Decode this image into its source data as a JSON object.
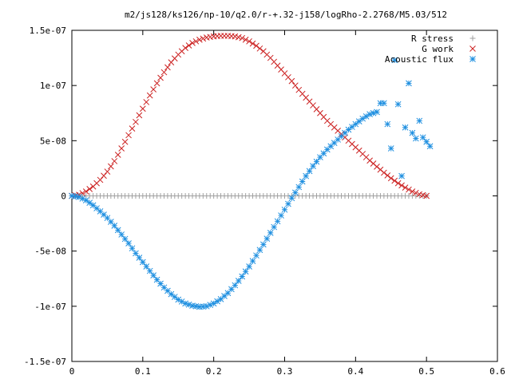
{
  "chart_data": {
    "type": "scatter",
    "title": "m2/js128/ks126/np-10/q2.0/r-+.32-j158/logRho-2.2768/M5.03/512",
    "xlabel": "",
    "ylabel": "",
    "xlim": [
      0,
      0.6
    ],
    "ylim": [
      -1.5e-07,
      1.5e-07
    ],
    "x_ticks": [
      0,
      0.1,
      0.2,
      0.3,
      0.4,
      0.5,
      0.6
    ],
    "x_tick_labels": [
      "0",
      "0.1",
      "0.2",
      "0.3",
      "0.4",
      "0.5",
      "0.6"
    ],
    "y_ticks": [
      -1.5e-07,
      -1e-07,
      -5e-08,
      0,
      5e-08,
      1e-07,
      1.5e-07
    ],
    "y_tick_labels": [
      "-1.5e-07",
      "-1e-07",
      "-5e-08",
      "0",
      "5e-08",
      "1e-07",
      "1.5e-07"
    ],
    "grid": false,
    "legend_position": "top-right",
    "series": [
      {
        "name": "R stress",
        "marker": "plus",
        "color": "#a0a0a0",
        "x": [
          0,
          0.01,
          0.02,
          0.03,
          0.04,
          0.05,
          0.06,
          0.07,
          0.08,
          0.09,
          0.1,
          0.11,
          0.12,
          0.13,
          0.14,
          0.15,
          0.16,
          0.17,
          0.18,
          0.19,
          0.2,
          0.21,
          0.22,
          0.23,
          0.24,
          0.25,
          0.26,
          0.27,
          0.28,
          0.29,
          0.3,
          0.31,
          0.32,
          0.33,
          0.34,
          0.35,
          0.36,
          0.37,
          0.38,
          0.39,
          0.4,
          0.41,
          0.42,
          0.43,
          0.44,
          0.45,
          0.46,
          0.47,
          0.48,
          0.49,
          0.5
        ],
        "y": [
          0,
          0,
          0,
          0,
          0,
          0,
          0,
          0,
          0,
          0,
          0,
          0,
          0,
          0,
          0,
          0,
          0,
          0,
          0,
          0,
          0,
          0,
          0,
          0,
          0,
          0,
          0,
          0,
          0,
          0,
          0,
          0,
          0,
          0,
          0,
          0,
          0,
          0,
          0,
          0,
          0,
          0,
          0,
          0,
          0,
          0,
          0,
          0,
          0,
          0,
          0
        ]
      },
      {
        "name": "G work",
        "marker": "cross",
        "color": "#cc2222",
        "x": [
          0,
          0.01,
          0.02,
          0.03,
          0.04,
          0.05,
          0.06,
          0.07,
          0.08,
          0.09,
          0.1,
          0.11,
          0.12,
          0.13,
          0.14,
          0.15,
          0.16,
          0.17,
          0.18,
          0.19,
          0.2,
          0.21,
          0.22,
          0.23,
          0.24,
          0.25,
          0.26,
          0.27,
          0.28,
          0.29,
          0.3,
          0.31,
          0.32,
          0.33,
          0.34,
          0.35,
          0.36,
          0.37,
          0.38,
          0.39,
          0.4,
          0.41,
          0.42,
          0.43,
          0.44,
          0.45,
          0.46,
          0.47,
          0.48,
          0.49,
          0.5
        ],
        "y": [
          0,
          1e-09,
          4e-09,
          8.5e-09,
          1.45e-08,
          2.2e-08,
          3.15e-08,
          4.3e-08,
          5.5e-08,
          6.7e-08,
          7.9e-08,
          9.1e-08,
          1.02e-07,
          1.12e-07,
          1.21e-07,
          1.28e-07,
          1.34e-07,
          1.385e-07,
          1.415e-07,
          1.435e-07,
          1.445e-07,
          1.45e-07,
          1.45e-07,
          1.445e-07,
          1.43e-07,
          1.4e-07,
          1.36e-07,
          1.31e-07,
          1.25e-07,
          1.18e-07,
          1.11e-07,
          1.04e-07,
          9.6e-08,
          8.9e-08,
          8.2e-08,
          7.5e-08,
          6.8e-08,
          6.2e-08,
          5.6e-08,
          5e-08,
          4.4e-08,
          3.8e-08,
          3.2e-08,
          2.65e-08,
          2.1e-08,
          1.6e-08,
          1.15e-08,
          7.5e-09,
          4e-09,
          1.5e-09,
          0
        ]
      },
      {
        "name": "Acoustic flux",
        "marker": "star",
        "color": "#1e8fe0",
        "x": [
          0,
          0.01,
          0.02,
          0.03,
          0.04,
          0.05,
          0.06,
          0.07,
          0.08,
          0.09,
          0.1,
          0.11,
          0.12,
          0.13,
          0.14,
          0.15,
          0.16,
          0.17,
          0.18,
          0.19,
          0.2,
          0.21,
          0.22,
          0.23,
          0.24,
          0.25,
          0.26,
          0.27,
          0.28,
          0.29,
          0.3,
          0.31,
          0.32,
          0.33,
          0.34,
          0.35,
          0.36,
          0.37,
          0.38,
          0.39,
          0.4,
          0.41,
          0.42,
          0.43,
          0.435,
          0.44,
          0.445,
          0.45,
          0.455,
          0.46,
          0.465,
          0.47,
          0.475,
          0.48,
          0.485,
          0.49,
          0.495,
          0.5,
          0.505
        ],
        "y": [
          0,
          -1e-09,
          -4e-09,
          -8.5e-09,
          -1.4e-08,
          -2e-08,
          -2.7e-08,
          -3.5e-08,
          -4.3e-08,
          -5.2e-08,
          -6e-08,
          -6.8e-08,
          -7.6e-08,
          -8.3e-08,
          -8.9e-08,
          -9.4e-08,
          -9.75e-08,
          -9.95e-08,
          -1.005e-07,
          -1e-07,
          -9.75e-08,
          -9.35e-08,
          -8.8e-08,
          -8.1e-08,
          -7.3e-08,
          -6.4e-08,
          -5.4e-08,
          -4.4e-08,
          -3.35e-08,
          -2.3e-08,
          -1.25e-08,
          -2e-09,
          8e-09,
          1.8e-08,
          2.7e-08,
          3.5e-08,
          4.2e-08,
          4.8e-08,
          5.4e-08,
          6e-08,
          6.5e-08,
          7e-08,
          7.4e-08,
          7.6e-08,
          8.4e-08,
          8.4e-08,
          6.5e-08,
          4.3e-08,
          1.23e-07,
          8.3e-08,
          1.8e-08,
          6.2e-08,
          1.02e-07,
          5.7e-08,
          5.2e-08,
          6.8e-08,
          5.3e-08,
          4.9e-08,
          4.5e-08
        ]
      }
    ]
  }
}
